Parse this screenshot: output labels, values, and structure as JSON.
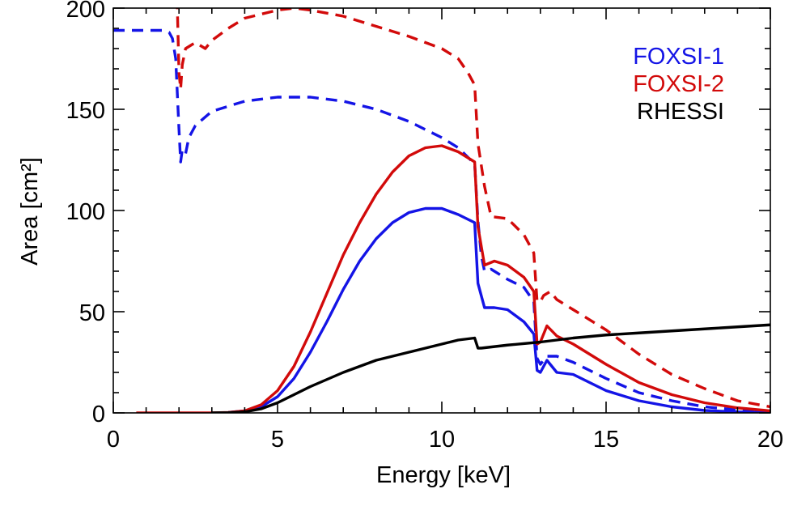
{
  "chart_data": {
    "type": "line",
    "title": "",
    "xlabel": "Energy [keV]",
    "ylabel": "Area [cm²]",
    "xlim": [
      0,
      20
    ],
    "ylim": [
      0,
      200
    ],
    "xticks": [
      0,
      5,
      10,
      15,
      20
    ],
    "yticks": [
      0,
      50,
      100,
      150,
      200
    ],
    "xtick_labels": [
      "0",
      "5",
      "10",
      "15",
      "20"
    ],
    "ytick_labels": [
      "0",
      "50",
      "100",
      "150",
      "200"
    ],
    "grid": false,
    "legend_placement": "top-right",
    "legend": [
      {
        "label": "FOXSI-1",
        "color": "#1414e6"
      },
      {
        "label": "FOXSI-2",
        "color": "#d20a0a"
      },
      {
        "label": "RHESSI",
        "color": "#000000"
      }
    ],
    "series": [
      {
        "color": "#1414e6",
        "style": "dashed",
        "x": [
          0.0,
          1.5,
          1.7,
          1.8,
          1.9,
          2.0,
          2.05,
          2.1,
          2.2,
          2.3,
          2.5,
          3,
          4,
          5,
          5.5,
          6,
          7,
          8,
          9,
          10,
          10.5,
          11.0,
          11.1,
          11.2,
          11.3,
          11.5,
          11.8,
          12.0,
          12.5,
          12.8,
          12.9,
          13.0,
          13.2,
          13.5,
          14,
          15,
          16,
          17,
          18,
          19,
          20
        ],
        "y": [
          189,
          189,
          188,
          185,
          175,
          140,
          124,
          130,
          128,
          136,
          142,
          149,
          154,
          156,
          156,
          156,
          154,
          150,
          144,
          136,
          131,
          123,
          95,
          78,
          70,
          71,
          68,
          66,
          62,
          55,
          27,
          24,
          28,
          28,
          25,
          17,
          10,
          6,
          3,
          1.5,
          0.5
        ]
      },
      {
        "color": "#d20a0a",
        "style": "dashed",
        "x": [
          1.9,
          1.95,
          2.0,
          2.05,
          2.1,
          2.2,
          2.3,
          2.5,
          2.8,
          3.0,
          3.5,
          4,
          5,
          5.5,
          6,
          7,
          8,
          9,
          10,
          10.5,
          10.8,
          11.0,
          11.1,
          11.3,
          11.5,
          12.0,
          12.5,
          12.8,
          12.9,
          13.0,
          13.1,
          13.3,
          13.5,
          14,
          15,
          16,
          17,
          18,
          19,
          20
        ],
        "y": [
          205,
          200,
          168,
          160,
          172,
          180,
          181,
          183,
          180,
          184,
          190,
          195,
          199,
          200,
          199,
          196,
          191,
          186,
          180,
          175,
          168,
          162,
          133,
          112,
          97,
          96,
          88,
          79,
          55,
          55,
          58,
          60,
          56,
          51,
          41,
          29,
          19,
          12,
          6,
          3
        ]
      },
      {
        "color": "#1414e6",
        "style": "solid",
        "x": [
          3.5,
          4,
          4.5,
          5,
          5.5,
          6,
          6.5,
          7,
          7.5,
          8,
          8.5,
          9,
          9.5,
          10,
          10.5,
          11.0,
          11.1,
          11.3,
          11.6,
          12.0,
          12.5,
          12.8,
          12.9,
          13.0,
          13.2,
          13.5,
          14,
          15,
          16,
          17,
          18,
          19,
          20
        ],
        "y": [
          0.2,
          1,
          3,
          8,
          17,
          30,
          45,
          61,
          75,
          86,
          94,
          99,
          101,
          101,
          98,
          94,
          64,
          52,
          52,
          51,
          45,
          39,
          21,
          20,
          26,
          20,
          19,
          11,
          6,
          3,
          1.2,
          0.5,
          0.2
        ]
      },
      {
        "color": "#d20a0a",
        "style": "solid",
        "x": [
          0.7,
          2.0,
          3.0,
          3.5,
          4,
          4.5,
          5,
          5.5,
          6,
          6.5,
          7,
          7.5,
          8,
          8.5,
          9,
          9.5,
          10,
          10.5,
          11.0,
          11.1,
          11.3,
          11.6,
          12.0,
          12.5,
          12.8,
          12.9,
          13.0,
          13.2,
          13.5,
          14,
          15,
          16,
          17,
          18,
          19,
          20
        ],
        "y": [
          0,
          0,
          0,
          0.2,
          1,
          4,
          11,
          23,
          40,
          59,
          78,
          94,
          108,
          119,
          127,
          131,
          132,
          129,
          124,
          92,
          73,
          75,
          73,
          67,
          60,
          34,
          35,
          43,
          38,
          34,
          24,
          15,
          9,
          5,
          2.5,
          1
        ]
      },
      {
        "color": "#000000",
        "style": "solid",
        "x": [
          3.0,
          3.5,
          4.0,
          4.5,
          5.0,
          5.5,
          6.0,
          7.0,
          8.0,
          9.0,
          10.0,
          10.5,
          11.0,
          11.1,
          11.2,
          12.0,
          13.0,
          14.0,
          15.0,
          16.0,
          17.0,
          18.0,
          19.0,
          20.0
        ],
        "y": [
          0,
          0.1,
          0.5,
          2,
          5,
          9,
          13,
          20,
          26,
          30,
          34,
          36,
          37,
          32,
          32,
          33.5,
          35,
          37,
          38.5,
          39.5,
          40.5,
          41.5,
          42.5,
          43.5
        ]
      }
    ]
  }
}
